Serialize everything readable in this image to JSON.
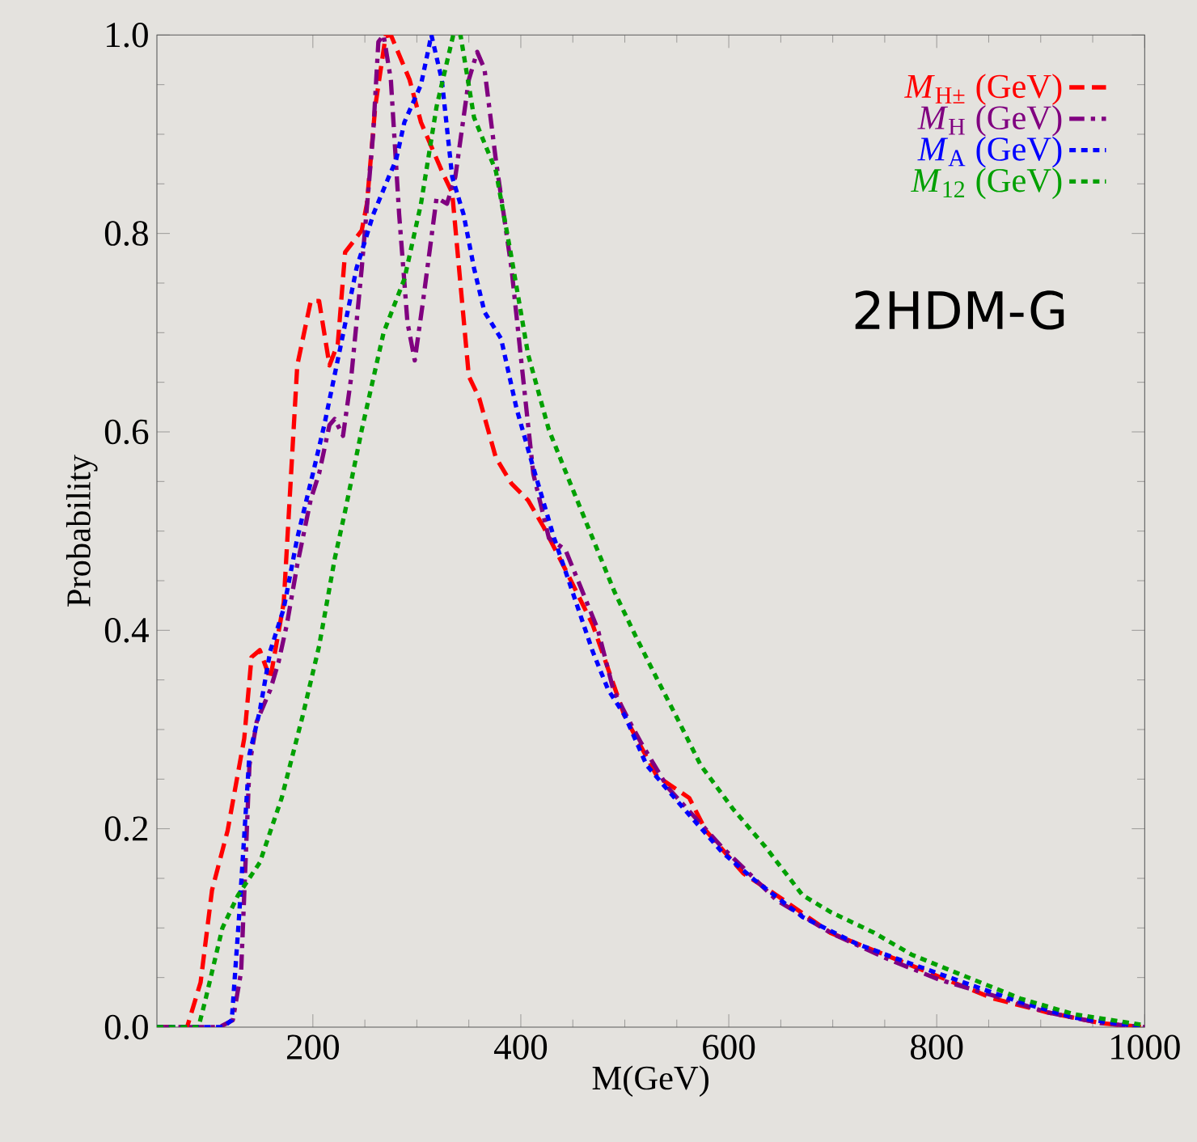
{
  "chart_data": {
    "type": "line",
    "xlabel": "M(GeV)",
    "ylabel": "Probability",
    "xlim": [
      50,
      1000
    ],
    "ylim": [
      0,
      1
    ],
    "xticks": [
      200,
      400,
      600,
      800,
      1000
    ],
    "yticks": [
      {
        "value": 0,
        "label": "0.0"
      },
      {
        "value": 0.2,
        "label": "0.2"
      },
      {
        "value": 0.4,
        "label": "0.4"
      },
      {
        "value": 0.6,
        "label": "0.6"
      },
      {
        "value": 0.8,
        "label": "0.8"
      },
      {
        "value": 1.0,
        "label": "1.0"
      }
    ],
    "legend": "top right",
    "grid": false,
    "marker": "none",
    "annotations": [
      "2HDM-G"
    ],
    "series": [
      {
        "name": "*M*$_{H±}$ (GeV)",
        "color": "#ff0000",
        "line_style": "dashed",
        "x": [
          50,
          79,
          92,
          103,
          118,
          134,
          141,
          149,
          159,
          172,
          185,
          198,
          206,
          216,
          224,
          231,
          247,
          252,
          260,
          270,
          275,
          293,
          304,
          324,
          334,
          350,
          360,
          376,
          391,
          407,
          422,
          443,
          469,
          489,
          500,
          517,
          531,
          562,
          578,
          614,
          646,
          698,
          750,
          802,
          854,
          906,
          958,
          1000
        ],
        "values": [
          0,
          0,
          0.045,
          0.138,
          0.198,
          0.291,
          0.373,
          0.38,
          0.351,
          0.428,
          0.667,
          0.732,
          0.732,
          0.667,
          0.689,
          0.781,
          0.803,
          0.83,
          0.928,
          0.999,
          1.0,
          0.955,
          0.912,
          0.863,
          0.841,
          0.656,
          0.634,
          0.574,
          0.548,
          0.531,
          0.504,
          0.461,
          0.406,
          0.346,
          0.313,
          0.28,
          0.253,
          0.231,
          0.198,
          0.155,
          0.133,
          0.095,
          0.073,
          0.051,
          0.029,
          0.015,
          0.004,
          0
        ]
      },
      {
        "name": "*M*$_{H}$ (GeV)",
        "color": "#800080",
        "line_style": "dashdot",
        "x": [
          50,
          110,
          123,
          131,
          139,
          146,
          159,
          167,
          175,
          185,
          198,
          206,
          216,
          221,
          229,
          237,
          247,
          258,
          263,
          268,
          275,
          283,
          291,
          298,
          306,
          319,
          329,
          337,
          350,
          358,
          365,
          376,
          391,
          402,
          412,
          427,
          443,
          474,
          489,
          502,
          516,
          541,
          593,
          646,
          698,
          750,
          802,
          854,
          906,
          958,
          1000
        ],
        "values": [
          0,
          0,
          0.007,
          0.056,
          0.264,
          0.308,
          0.34,
          0.368,
          0.406,
          0.466,
          0.532,
          0.558,
          0.607,
          0.613,
          0.596,
          0.656,
          0.765,
          0.901,
          0.993,
          1.0,
          0.955,
          0.819,
          0.71,
          0.672,
          0.732,
          0.836,
          0.83,
          0.857,
          0.955,
          0.983,
          0.966,
          0.874,
          0.765,
          0.656,
          0.558,
          0.493,
          0.481,
          0.401,
          0.34,
          0.313,
          0.286,
          0.242,
          0.182,
          0.128,
          0.095,
          0.07,
          0.048,
          0.032,
          0.015,
          0.004,
          0
        ]
      },
      {
        "name": "*M*$_{A}$ (GeV)",
        "color": "#0000ff",
        "line_style": "dotted",
        "x": [
          50,
          113,
          122,
          129,
          139,
          149,
          159,
          172,
          185,
          200,
          211,
          226,
          242,
          258,
          273,
          280,
          288,
          304,
          314,
          324,
          334,
          345,
          355,
          365,
          381,
          396,
          412,
          432,
          448,
          469,
          484,
          500,
          521,
          552,
          593,
          624,
          671,
          723,
          775,
          826,
          878,
          930,
          1000
        ],
        "values": [
          0,
          0,
          0.007,
          0.111,
          0.275,
          0.319,
          0.379,
          0.422,
          0.493,
          0.558,
          0.607,
          0.683,
          0.765,
          0.819,
          0.857,
          0.874,
          0.912,
          0.95,
          1.0,
          0.955,
          0.857,
          0.819,
          0.765,
          0.721,
          0.694,
          0.623,
          0.564,
          0.493,
          0.444,
          0.379,
          0.34,
          0.314,
          0.264,
          0.226,
          0.177,
          0.149,
          0.111,
          0.084,
          0.064,
          0.045,
          0.026,
          0.01,
          0
        ]
      },
      {
        "name": "*M*$_{12}$ (GeV)",
        "color": "#00a000",
        "line_style": "dotted",
        "x": [
          50,
          90,
          97,
          113,
          128,
          149,
          170,
          190,
          206,
          221,
          231,
          247,
          268,
          288,
          304,
          319,
          335,
          342,
          355,
          376,
          391,
          407,
          427,
          448,
          469,
          490,
          510,
          531,
          552,
          573,
          604,
          635,
          671,
          698,
          740,
          776,
          828,
          880,
          932,
          1000
        ],
        "values": [
          0,
          0,
          0.029,
          0.1,
          0.133,
          0.166,
          0.231,
          0.313,
          0.384,
          0.472,
          0.52,
          0.602,
          0.7,
          0.754,
          0.83,
          0.928,
          1.0,
          1.0,
          0.917,
          0.863,
          0.776,
          0.678,
          0.602,
          0.547,
          0.493,
          0.439,
          0.395,
          0.351,
          0.308,
          0.264,
          0.22,
          0.182,
          0.133,
          0.116,
          0.095,
          0.073,
          0.051,
          0.029,
          0.013,
          0.002
        ]
      }
    ]
  }
}
